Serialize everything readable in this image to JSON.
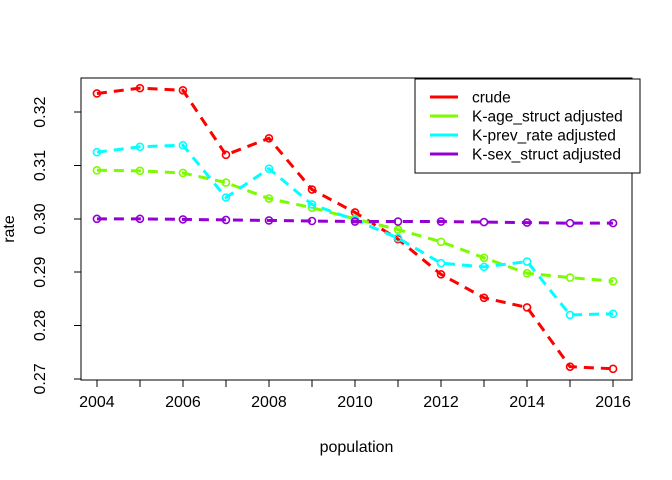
{
  "figure": {
    "background": "#ffffff",
    "axis_color": "#000000"
  },
  "chart_data": {
    "type": "line",
    "title": "",
    "xlabel": "population",
    "ylabel": "rate",
    "x": [
      2004,
      2005,
      2006,
      2007,
      2008,
      2009,
      2010,
      2011,
      2012,
      2013,
      2014,
      2015,
      2016
    ],
    "series": [
      {
        "name": "crude",
        "color": "#FF0000",
        "linestyle": "dashed",
        "marker": "open-circle",
        "values": [
          0.3235,
          0.3245,
          0.3241,
          0.312,
          0.3151,
          0.3055,
          0.3012,
          0.2962,
          0.2896,
          0.2852,
          0.2834,
          0.2723,
          0.2719
        ]
      },
      {
        "name": "K-age_struct adjusted",
        "color": "#7CFC00",
        "linestyle": "dashed",
        "marker": "open-circle",
        "values": [
          0.3091,
          0.309,
          0.3086,
          0.3068,
          0.3038,
          0.3021,
          0.3,
          0.298,
          0.2957,
          0.2927,
          0.2898,
          0.289,
          0.2883
        ]
      },
      {
        "name": "K-prev_rate adjusted",
        "color": "#00FFFF",
        "linestyle": "dashed",
        "marker": "open-circle",
        "values": [
          0.3125,
          0.3135,
          0.3138,
          0.304,
          0.3094,
          0.3027,
          0.2998,
          0.2964,
          0.2917,
          0.291,
          0.292,
          0.282,
          0.2822
        ]
      },
      {
        "name": "K-sex_struct adjusted",
        "color": "#9400D3",
        "linestyle": "dashed",
        "marker": "open-circle",
        "values": [
          0.3,
          0.3,
          0.2999,
          0.2998,
          0.2997,
          0.2996,
          0.2995,
          0.2995,
          0.2995,
          0.2994,
          0.2993,
          0.2992,
          0.2992
        ]
      }
    ],
    "xlim": [
      2003.63,
      2016.44
    ],
    "ylim": [
      0.2698,
      0.3264
    ],
    "xticks_minor": [
      2004,
      2005,
      2006,
      2007,
      2008,
      2009,
      2010,
      2011,
      2012,
      2013,
      2014,
      2015,
      2016
    ],
    "xticks_labeled": [
      "2004",
      "2006",
      "2008",
      "2010",
      "2012",
      "2014",
      "2016"
    ],
    "xticks_labeled_values": [
      2004,
      2006,
      2008,
      2010,
      2012,
      2014,
      2016
    ],
    "yticks": [
      0.27,
      0.28,
      0.29,
      0.3,
      0.31,
      0.32
    ],
    "ytick_labels": [
      "0.27",
      "0.28",
      "0.29",
      "0.30",
      "0.31",
      "0.32"
    ],
    "grid": false,
    "legend": {
      "position": "topright",
      "border": true,
      "background": "#ffffff",
      "entries": [
        "crude",
        "K-age_struct adjusted",
        "K-prev_rate adjusted",
        "K-sex_struct adjusted"
      ]
    }
  }
}
